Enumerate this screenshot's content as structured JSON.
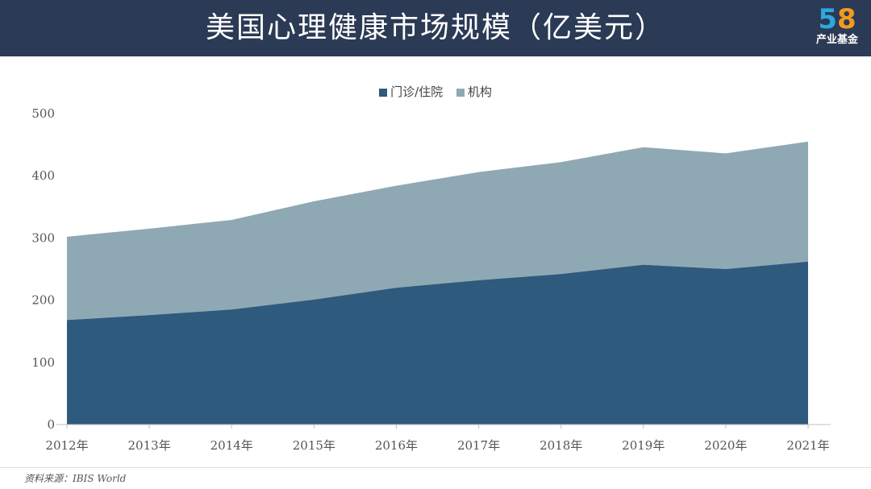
{
  "header": {
    "title": "美国心理健康市场规模（亿美元）",
    "logo_number_1": "5",
    "logo_number_2": "8",
    "logo_text": "产业基金"
  },
  "source": "资料来源：IBIS World",
  "colors": {
    "header_bg": "#2b3a55",
    "series_outpatient": "#2e5a7e",
    "series_institution": "#8fa9b4"
  },
  "chart_data": {
    "type": "area",
    "stacked": true,
    "title": "美国心理健康市场规模（亿美元）",
    "categories": [
      "2012年",
      "2013年",
      "2014年",
      "2015年",
      "2016年",
      "2017年",
      "2018年",
      "2019年",
      "2020年",
      "2021年"
    ],
    "series": [
      {
        "name": "门诊/住院",
        "values": [
          168,
          176,
          185,
          201,
          220,
          232,
          242,
          257,
          250,
          262
        ]
      },
      {
        "name": "机构",
        "values": [
          134,
          139,
          144,
          158,
          164,
          174,
          180,
          189,
          186,
          193
        ]
      }
    ],
    "yticks": [
      0,
      100,
      200,
      300,
      400,
      500
    ],
    "ylim": [
      0,
      500
    ],
    "legend_position": "top-center",
    "grid": false
  }
}
